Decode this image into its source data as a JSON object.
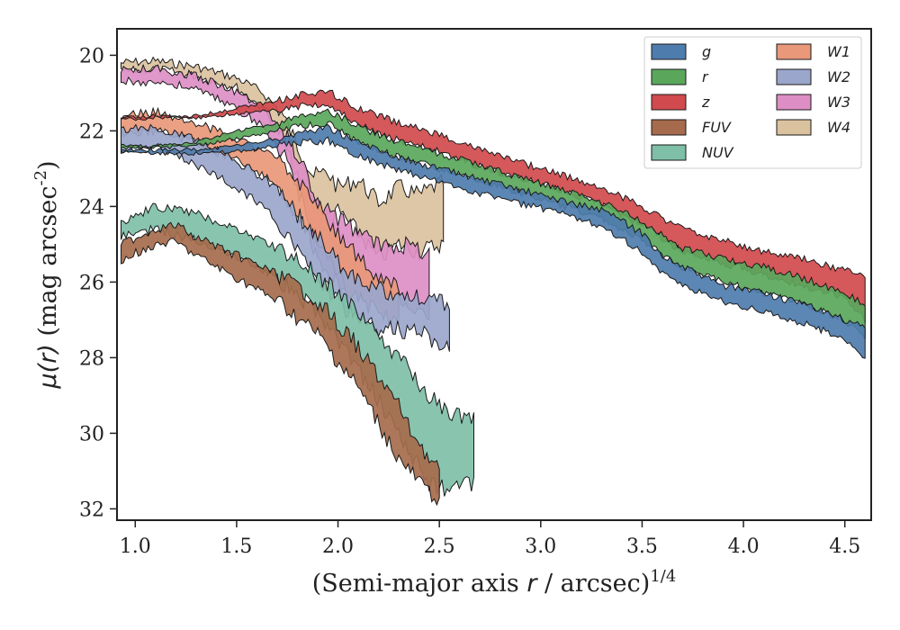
{
  "chart_data": {
    "type": "area",
    "xlabel": "(Semi-major axis r / arcsec)^{1/4}",
    "ylabel": "μ(r) (mag arcsec^{-2})",
    "xlim": [
      0.91,
      4.63
    ],
    "ylim": [
      32.3,
      19.3
    ],
    "y_inverted": true,
    "x_ticks": [
      1.0,
      1.5,
      2.0,
      2.5,
      3.0,
      3.5,
      4.0,
      4.5
    ],
    "x_tick_labels": [
      "1.0",
      "1.5",
      "2.0",
      "2.5",
      "3.0",
      "3.5",
      "4.0",
      "4.5"
    ],
    "y_ticks": [
      20,
      22,
      24,
      26,
      28,
      30,
      32
    ],
    "y_tick_labels": [
      "20",
      "22",
      "24",
      "26",
      "28",
      "30",
      "32"
    ],
    "legend_position": "top-right",
    "legend_columns": 2,
    "series": [
      {
        "name": "W4",
        "color": "#dbc29f",
        "upper": [
          [
            0.93,
            20.2
          ],
          [
            1.1,
            20.15
          ],
          [
            1.3,
            20.3
          ],
          [
            1.5,
            20.6
          ],
          [
            1.62,
            20.95
          ],
          [
            1.72,
            21.5
          ],
          [
            1.8,
            22.4
          ],
          [
            1.88,
            23.2
          ],
          [
            1.95,
            23.1
          ],
          [
            2.0,
            23.5
          ],
          [
            2.1,
            23.3
          ],
          [
            2.2,
            23.9
          ],
          [
            2.3,
            23.5
          ],
          [
            2.4,
            23.7
          ],
          [
            2.5,
            23.4
          ],
          [
            2.52,
            23.4
          ]
        ],
        "lower": [
          [
            0.93,
            20.45
          ],
          [
            1.1,
            20.35
          ],
          [
            1.3,
            20.55
          ],
          [
            1.5,
            20.85
          ],
          [
            1.62,
            21.35
          ],
          [
            1.72,
            22.1
          ],
          [
            1.8,
            23.3
          ],
          [
            1.88,
            24.6
          ],
          [
            1.95,
            24.7
          ],
          [
            2.0,
            24.1
          ],
          [
            2.1,
            24.7
          ],
          [
            2.2,
            25.4
          ],
          [
            2.3,
            25.0
          ],
          [
            2.4,
            25.2
          ],
          [
            2.5,
            25.0
          ],
          [
            2.52,
            25.0
          ]
        ]
      },
      {
        "name": "W3",
        "color": "#dd8ec4",
        "upper": [
          [
            0.93,
            20.4
          ],
          [
            1.1,
            20.35
          ],
          [
            1.3,
            20.55
          ],
          [
            1.5,
            20.95
          ],
          [
            1.65,
            21.5
          ],
          [
            1.75,
            22.2
          ],
          [
            1.82,
            22.8
          ],
          [
            1.9,
            24.0
          ],
          [
            1.95,
            24.1
          ],
          [
            2.05,
            24.5
          ],
          [
            2.2,
            25.0
          ],
          [
            2.3,
            25.0
          ],
          [
            2.45,
            25.2
          ]
        ],
        "lower": [
          [
            0.93,
            20.7
          ],
          [
            1.1,
            20.7
          ],
          [
            1.3,
            20.9
          ],
          [
            1.5,
            21.4
          ],
          [
            1.65,
            22.0
          ],
          [
            1.75,
            22.8
          ],
          [
            1.82,
            23.8
          ],
          [
            1.9,
            25.5
          ],
          [
            1.95,
            25.8
          ],
          [
            2.05,
            26.2
          ],
          [
            2.2,
            26.3
          ],
          [
            2.3,
            26.4
          ],
          [
            2.45,
            26.9
          ]
        ]
      },
      {
        "name": "W1",
        "color": "#e9987a",
        "upper": [
          [
            0.93,
            21.6
          ],
          [
            1.1,
            21.5
          ],
          [
            1.3,
            21.8
          ],
          [
            1.5,
            22.2
          ],
          [
            1.65,
            22.6
          ],
          [
            1.75,
            23.0
          ],
          [
            1.85,
            23.6
          ],
          [
            1.95,
            24.4
          ],
          [
            2.05,
            25.0
          ],
          [
            2.15,
            25.7
          ],
          [
            2.25,
            26.1
          ],
          [
            2.3,
            26.1
          ]
        ],
        "lower": [
          [
            0.93,
            22.1
          ],
          [
            1.1,
            22.0
          ],
          [
            1.3,
            22.3
          ],
          [
            1.5,
            22.8
          ],
          [
            1.65,
            23.2
          ],
          [
            1.75,
            23.8
          ],
          [
            1.85,
            24.6
          ],
          [
            1.95,
            25.4
          ],
          [
            2.05,
            26.2
          ],
          [
            2.15,
            26.6
          ],
          [
            2.25,
            26.9
          ],
          [
            2.3,
            26.9
          ]
        ]
      },
      {
        "name": "W2",
        "color": "#9aa6cc",
        "upper": [
          [
            0.93,
            22.0
          ],
          [
            1.1,
            21.9
          ],
          [
            1.3,
            22.2
          ],
          [
            1.5,
            22.8
          ],
          [
            1.65,
            23.3
          ],
          [
            1.75,
            23.8
          ],
          [
            1.85,
            24.6
          ],
          [
            1.95,
            25.1
          ],
          [
            2.05,
            25.8
          ],
          [
            2.2,
            26.2
          ],
          [
            2.4,
            26.4
          ],
          [
            2.55,
            26.6
          ]
        ],
        "lower": [
          [
            0.93,
            22.5
          ],
          [
            1.1,
            22.4
          ],
          [
            1.3,
            22.9
          ],
          [
            1.5,
            23.5
          ],
          [
            1.65,
            24.1
          ],
          [
            1.75,
            24.7
          ],
          [
            1.85,
            25.6
          ],
          [
            1.95,
            26.2
          ],
          [
            2.05,
            26.8
          ],
          [
            2.2,
            27.2
          ],
          [
            2.4,
            27.3
          ],
          [
            2.55,
            27.8
          ]
        ]
      },
      {
        "name": "NUV",
        "color": "#7fbfa8",
        "upper": [
          [
            0.93,
            24.4
          ],
          [
            1.1,
            24.0
          ],
          [
            1.3,
            24.2
          ],
          [
            1.5,
            24.6
          ],
          [
            1.7,
            25.1
          ],
          [
            1.9,
            25.8
          ],
          [
            2.1,
            26.8
          ],
          [
            2.3,
            28.0
          ],
          [
            2.45,
            29.0
          ],
          [
            2.55,
            29.5
          ],
          [
            2.67,
            29.6
          ]
        ],
        "lower": [
          [
            0.93,
            24.8
          ],
          [
            1.1,
            24.6
          ],
          [
            1.3,
            24.9
          ],
          [
            1.5,
            25.3
          ],
          [
            1.7,
            25.9
          ],
          [
            1.9,
            26.8
          ],
          [
            2.1,
            28.3
          ],
          [
            2.3,
            30.0
          ],
          [
            2.45,
            31.3
          ],
          [
            2.55,
            31.5
          ],
          [
            2.67,
            31.3
          ]
        ]
      },
      {
        "name": "FUV",
        "color": "#a56b4c",
        "upper": [
          [
            0.93,
            25.0
          ],
          [
            1.1,
            24.6
          ],
          [
            1.2,
            24.5
          ],
          [
            1.3,
            24.8
          ],
          [
            1.5,
            25.3
          ],
          [
            1.7,
            25.8
          ],
          [
            1.9,
            26.5
          ],
          [
            2.1,
            27.7
          ],
          [
            2.3,
            29.3
          ],
          [
            2.45,
            30.7
          ],
          [
            2.5,
            31.0
          ]
        ],
        "lower": [
          [
            0.93,
            25.4
          ],
          [
            1.1,
            25.0
          ],
          [
            1.2,
            24.95
          ],
          [
            1.3,
            25.3
          ],
          [
            1.5,
            25.9
          ],
          [
            1.7,
            26.5
          ],
          [
            1.9,
            27.4
          ],
          [
            2.1,
            28.8
          ],
          [
            2.3,
            30.7
          ],
          [
            2.45,
            31.6
          ],
          [
            2.5,
            31.7
          ]
        ]
      },
      {
        "name": "z",
        "color": "#d14a4d",
        "upper": [
          [
            0.93,
            21.65
          ],
          [
            1.1,
            21.6
          ],
          [
            1.3,
            21.6
          ],
          [
            1.5,
            21.4
          ],
          [
            1.7,
            21.2
          ],
          [
            1.85,
            21.0
          ],
          [
            1.95,
            20.95
          ],
          [
            2.1,
            21.4
          ],
          [
            2.3,
            21.8
          ],
          [
            2.5,
            22.1
          ],
          [
            2.7,
            22.5
          ],
          [
            3.0,
            23.0
          ],
          [
            3.3,
            23.5
          ],
          [
            3.5,
            24.0
          ],
          [
            3.7,
            24.6
          ],
          [
            3.9,
            24.9
          ],
          [
            4.1,
            25.2
          ],
          [
            4.3,
            25.4
          ],
          [
            4.5,
            25.7
          ],
          [
            4.6,
            25.8
          ]
        ],
        "lower": [
          [
            0.93,
            21.7
          ],
          [
            1.1,
            21.65
          ],
          [
            1.3,
            21.65
          ],
          [
            1.5,
            21.55
          ],
          [
            1.7,
            21.45
          ],
          [
            1.85,
            21.3
          ],
          [
            1.95,
            21.3
          ],
          [
            2.1,
            21.85
          ],
          [
            2.3,
            22.25
          ],
          [
            2.5,
            22.55
          ],
          [
            2.7,
            22.95
          ],
          [
            3.0,
            23.4
          ],
          [
            3.3,
            23.95
          ],
          [
            3.5,
            24.5
          ],
          [
            3.7,
            25.2
          ],
          [
            3.9,
            25.5
          ],
          [
            4.1,
            25.8
          ],
          [
            4.3,
            26.1
          ],
          [
            4.5,
            26.4
          ],
          [
            4.6,
            27.0
          ]
        ]
      },
      {
        "name": "r",
        "color": "#5aa75c",
        "upper": [
          [
            0.93,
            22.4
          ],
          [
            1.1,
            22.4
          ],
          [
            1.3,
            22.3
          ],
          [
            1.5,
            22.0
          ],
          [
            1.7,
            21.8
          ],
          [
            1.85,
            21.55
          ],
          [
            1.95,
            21.45
          ],
          [
            2.1,
            21.9
          ],
          [
            2.3,
            22.3
          ],
          [
            2.5,
            22.6
          ],
          [
            2.7,
            22.9
          ],
          [
            3.0,
            23.4
          ],
          [
            3.3,
            23.9
          ],
          [
            3.5,
            24.4
          ],
          [
            3.7,
            25.1
          ],
          [
            3.9,
            25.4
          ],
          [
            4.1,
            25.6
          ],
          [
            4.3,
            25.9
          ],
          [
            4.5,
            26.3
          ],
          [
            4.6,
            26.6
          ]
        ],
        "lower": [
          [
            0.93,
            22.45
          ],
          [
            1.1,
            22.45
          ],
          [
            1.3,
            22.4
          ],
          [
            1.5,
            22.2
          ],
          [
            1.7,
            22.0
          ],
          [
            1.85,
            21.85
          ],
          [
            1.95,
            21.8
          ],
          [
            2.1,
            22.3
          ],
          [
            2.3,
            22.7
          ],
          [
            2.5,
            23.0
          ],
          [
            2.7,
            23.3
          ],
          [
            3.0,
            23.8
          ],
          [
            3.3,
            24.3
          ],
          [
            3.5,
            24.9
          ],
          [
            3.7,
            25.6
          ],
          [
            3.9,
            26.0
          ],
          [
            4.1,
            26.3
          ],
          [
            4.3,
            26.6
          ],
          [
            4.5,
            27.0
          ],
          [
            4.6,
            27.5
          ]
        ]
      },
      {
        "name": "g",
        "color": "#4e7cad",
        "upper": [
          [
            0.93,
            22.5
          ],
          [
            1.1,
            22.5
          ],
          [
            1.3,
            22.5
          ],
          [
            1.5,
            22.4
          ],
          [
            1.7,
            22.2
          ],
          [
            1.85,
            22.0
          ],
          [
            1.95,
            21.9
          ],
          [
            2.1,
            22.3
          ],
          [
            2.3,
            22.7
          ],
          [
            2.5,
            23.0
          ],
          [
            2.7,
            23.3
          ],
          [
            3.0,
            23.7
          ],
          [
            3.3,
            24.1
          ],
          [
            3.5,
            24.7
          ],
          [
            3.6,
            25.3
          ],
          [
            3.7,
            25.6
          ],
          [
            3.9,
            26.1
          ],
          [
            4.1,
            26.3
          ],
          [
            4.3,
            26.6
          ],
          [
            4.5,
            27.0
          ],
          [
            4.6,
            27.2
          ]
        ],
        "lower": [
          [
            0.93,
            22.55
          ],
          [
            1.1,
            22.6
          ],
          [
            1.3,
            22.6
          ],
          [
            1.5,
            22.55
          ],
          [
            1.7,
            22.4
          ],
          [
            1.85,
            22.3
          ],
          [
            1.95,
            22.25
          ],
          [
            2.1,
            22.65
          ],
          [
            2.3,
            23.05
          ],
          [
            2.5,
            23.35
          ],
          [
            2.7,
            23.65
          ],
          [
            3.0,
            24.05
          ],
          [
            3.3,
            24.5
          ],
          [
            3.5,
            25.2
          ],
          [
            3.6,
            25.8
          ],
          [
            3.7,
            26.1
          ],
          [
            3.9,
            26.5
          ],
          [
            4.1,
            26.8
          ],
          [
            4.3,
            27.1
          ],
          [
            4.5,
            27.5
          ],
          [
            4.6,
            28.0
          ]
        ]
      }
    ],
    "legend": [
      {
        "name": "g",
        "color": "#4e7cad"
      },
      {
        "name": "r",
        "color": "#5aa75c"
      },
      {
        "name": "z",
        "color": "#d14a4d"
      },
      {
        "name": "FUV",
        "color": "#a56b4c"
      },
      {
        "name": "NUV",
        "color": "#7fbfa8"
      },
      {
        "name": "W1",
        "color": "#e9987a"
      },
      {
        "name": "W2",
        "color": "#9aa6cc"
      },
      {
        "name": "W3",
        "color": "#dd8ec4"
      },
      {
        "name": "W4",
        "color": "#dbc29f"
      }
    ]
  }
}
